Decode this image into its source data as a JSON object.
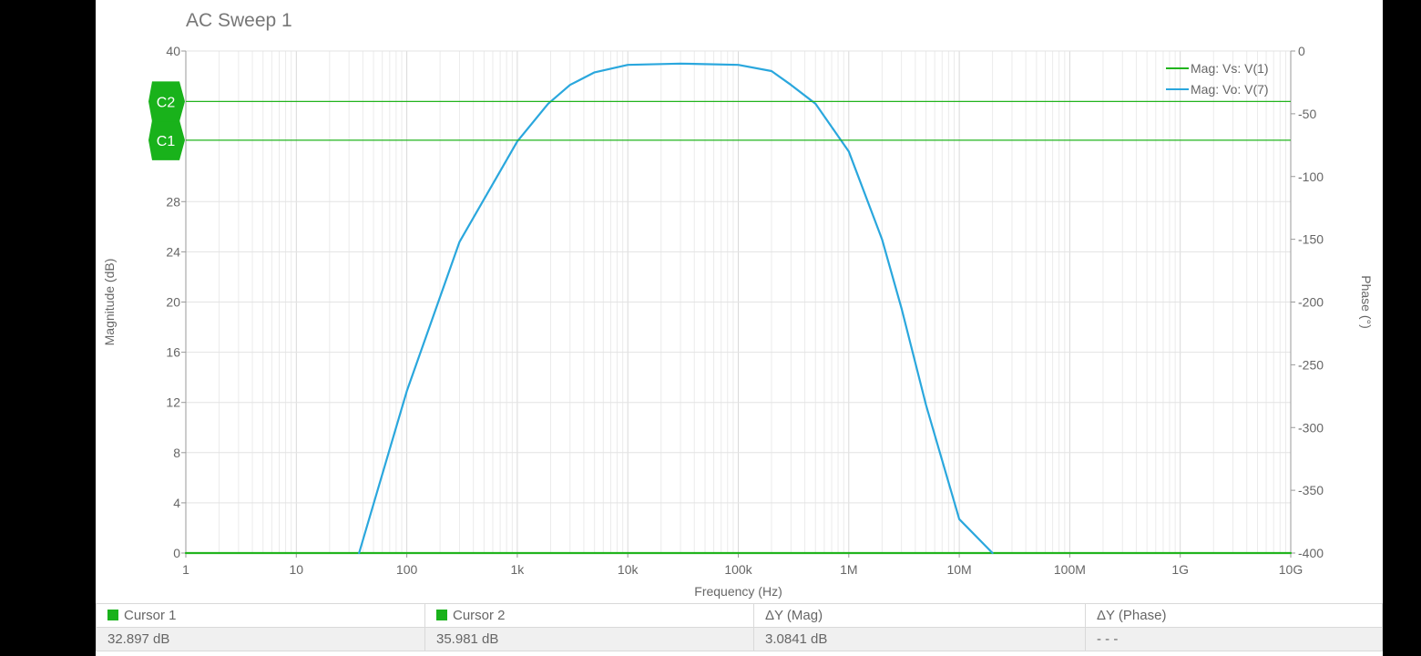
{
  "colors": {
    "green": "#22b41e",
    "blue": "#2aa7dd",
    "cursor_marker": "#19b21b"
  },
  "chart_data": {
    "type": "line",
    "title": "AC Sweep 1",
    "xlabel": "Frequency (Hz)",
    "ylabel": "Magnitude (dB)",
    "y2label": "Phase (°)",
    "xscale": "log",
    "xlim": [
      1,
      10000000000
    ],
    "ylim": [
      0,
      40
    ],
    "y2lim": [
      -400,
      0
    ],
    "grid": true,
    "legend_position": "top-right",
    "x_ticks": [
      1,
      10,
      100,
      1000,
      10000,
      100000,
      1000000,
      10000000,
      100000000,
      1000000000,
      10000000000
    ],
    "x_tick_labels": [
      "1",
      "10",
      "100",
      "1k",
      "10k",
      "100k",
      "1M",
      "10M",
      "100M",
      "1G",
      "10G"
    ],
    "y_ticks": [
      0,
      4,
      8,
      12,
      16,
      20,
      24,
      28,
      40
    ],
    "y_tick_labels": [
      "0",
      "4",
      "8",
      "12",
      "16",
      "20",
      "24",
      "28",
      "40"
    ],
    "y2_ticks": [
      0,
      -50,
      -100,
      -150,
      -200,
      -250,
      -300,
      -350,
      -400
    ],
    "y2_tick_labels": [
      "0",
      "-50",
      "-100",
      "-150",
      "-200",
      "-250",
      "-300",
      "-350",
      "-400"
    ],
    "series": [
      {
        "name": "Mag: Vs: V(1)",
        "color": "#22b41e",
        "x": [
          1,
          10000000000
        ],
        "y": [
          0,
          0
        ]
      },
      {
        "name": "Mag: Vo: V(7)",
        "color": "#2aa7dd",
        "x": [
          37,
          100,
          300,
          1000,
          1900,
          3000,
          5000,
          10000,
          30000,
          100000,
          200000,
          300000,
          500000,
          1000000,
          2000000,
          3000000,
          5000000,
          10000000,
          20000000
        ],
        "y": [
          0,
          12.9,
          24.8,
          32.8,
          35.8,
          37.3,
          38.3,
          38.9,
          39.0,
          38.9,
          38.4,
          37.3,
          35.8,
          32.0,
          25.0,
          19.5,
          11.8,
          2.7,
          0
        ]
      }
    ],
    "cursors": [
      {
        "label": "C1",
        "value": 32.897
      },
      {
        "label": "C2",
        "value": 35.981
      }
    ]
  },
  "table": {
    "headers": [
      "Cursor 1",
      "Cursor 2",
      "ΔY (Mag)",
      "ΔY (Phase)"
    ],
    "values": [
      "32.897 dB",
      "35.981 dB",
      "3.0841 dB",
      "- - -"
    ]
  }
}
